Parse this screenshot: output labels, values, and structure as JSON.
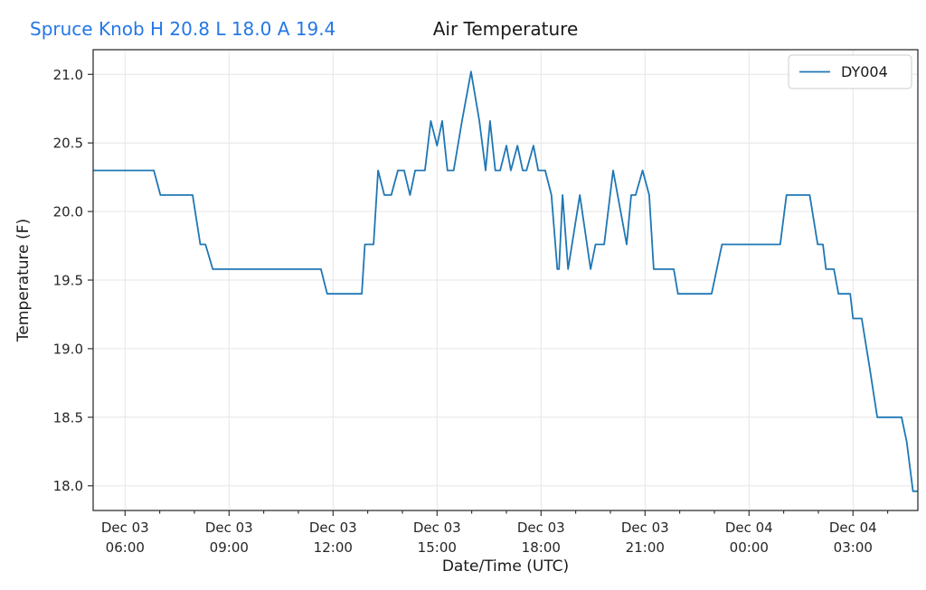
{
  "annotation": {
    "text": "Spruce Knob H 20.8 L 18.0 A 19.4",
    "station": "Spruce Knob",
    "high": "20.8",
    "low": "18.0",
    "average": "19.4",
    "color": "#2577e6"
  },
  "chart_data": {
    "type": "line",
    "title": "Air Temperature",
    "xlabel": "Date/Time (UTC)",
    "ylabel": "Temperature (F)",
    "grid": true,
    "line_color": "#1f77b4",
    "legend": {
      "label": "DY004",
      "position": "upper right"
    },
    "ylim": [
      17.82,
      21.18
    ],
    "xlim_hours": [
      5.08,
      28.87
    ],
    "y_ticks": [
      18.0,
      18.5,
      19.0,
      19.5,
      20.0,
      20.5,
      21.0
    ],
    "x_minor_tick_interval_hours": 1,
    "x_ticks": [
      {
        "hour": 6,
        "date": "Dec 03",
        "time": "06:00"
      },
      {
        "hour": 9,
        "date": "Dec 03",
        "time": "09:00"
      },
      {
        "hour": 12,
        "date": "Dec 03",
        "time": "12:00"
      },
      {
        "hour": 15,
        "date": "Dec 03",
        "time": "15:00"
      },
      {
        "hour": 18,
        "date": "Dec 03",
        "time": "18:00"
      },
      {
        "hour": 21,
        "date": "Dec 03",
        "time": "21:00"
      },
      {
        "hour": 24,
        "date": "Dec 04",
        "time": "00:00"
      },
      {
        "hour": 27,
        "date": "Dec 04",
        "time": "03:00"
      }
    ],
    "series": [
      {
        "name": "DY004",
        "points": [
          [
            5.08,
            20.3
          ],
          [
            6.83,
            20.3
          ],
          [
            7.02,
            20.12
          ],
          [
            7.95,
            20.12
          ],
          [
            8.17,
            19.76
          ],
          [
            8.32,
            19.76
          ],
          [
            8.53,
            19.58
          ],
          [
            11.65,
            19.58
          ],
          [
            11.83,
            19.4
          ],
          [
            12.83,
            19.4
          ],
          [
            12.92,
            19.76
          ],
          [
            13.17,
            19.76
          ],
          [
            13.3,
            20.3
          ],
          [
            13.48,
            20.12
          ],
          [
            13.68,
            20.12
          ],
          [
            13.87,
            20.3
          ],
          [
            14.05,
            20.3
          ],
          [
            14.22,
            20.12
          ],
          [
            14.37,
            20.3
          ],
          [
            14.65,
            20.3
          ],
          [
            14.82,
            20.66
          ],
          [
            15.0,
            20.48
          ],
          [
            15.15,
            20.66
          ],
          [
            15.3,
            20.3
          ],
          [
            15.48,
            20.3
          ],
          [
            15.72,
            20.66
          ],
          [
            15.98,
            21.02
          ],
          [
            16.22,
            20.66
          ],
          [
            16.4,
            20.3
          ],
          [
            16.53,
            20.66
          ],
          [
            16.68,
            20.3
          ],
          [
            16.82,
            20.3
          ],
          [
            17.0,
            20.48
          ],
          [
            17.13,
            20.3
          ],
          [
            17.32,
            20.48
          ],
          [
            17.47,
            20.3
          ],
          [
            17.58,
            20.3
          ],
          [
            17.78,
            20.48
          ],
          [
            17.92,
            20.3
          ],
          [
            18.12,
            20.3
          ],
          [
            18.3,
            20.12
          ],
          [
            18.47,
            19.58
          ],
          [
            18.52,
            19.58
          ],
          [
            18.62,
            20.12
          ],
          [
            18.78,
            19.58
          ],
          [
            19.12,
            20.12
          ],
          [
            19.43,
            19.58
          ],
          [
            19.57,
            19.76
          ],
          [
            19.82,
            19.76
          ],
          [
            20.08,
            20.3
          ],
          [
            20.47,
            19.76
          ],
          [
            20.6,
            20.12
          ],
          [
            20.73,
            20.12
          ],
          [
            20.93,
            20.3
          ],
          [
            21.12,
            20.12
          ],
          [
            21.25,
            19.58
          ],
          [
            21.83,
            19.58
          ],
          [
            21.95,
            19.4
          ],
          [
            22.92,
            19.4
          ],
          [
            23.22,
            19.76
          ],
          [
            24.9,
            19.76
          ],
          [
            25.08,
            20.12
          ],
          [
            25.75,
            20.12
          ],
          [
            25.98,
            19.76
          ],
          [
            26.13,
            19.76
          ],
          [
            26.22,
            19.58
          ],
          [
            26.45,
            19.58
          ],
          [
            26.58,
            19.4
          ],
          [
            26.92,
            19.4
          ],
          [
            27.0,
            19.22
          ],
          [
            27.25,
            19.22
          ],
          [
            27.48,
            18.86
          ],
          [
            27.7,
            18.5
          ],
          [
            28.4,
            18.5
          ],
          [
            28.55,
            18.32
          ],
          [
            28.73,
            17.96
          ],
          [
            28.87,
            17.96
          ]
        ]
      }
    ]
  }
}
